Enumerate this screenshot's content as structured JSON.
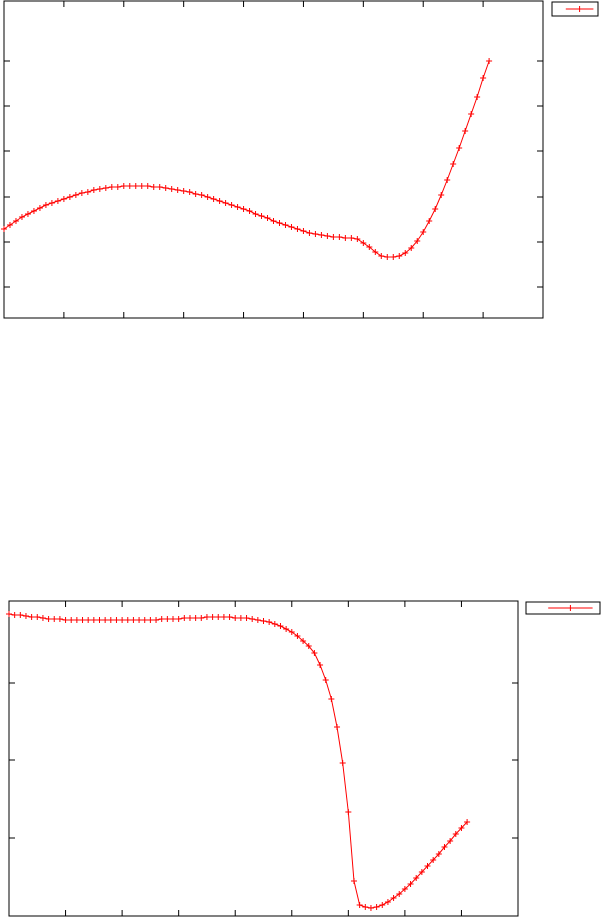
{
  "chart_data": [
    {
      "type": "line",
      "x": [
        0,
        0.1,
        0.2,
        0.3,
        0.4,
        0.5,
        0.6,
        0.7,
        0.8,
        0.9,
        1,
        1.1,
        1.2,
        1.3,
        1.4,
        1.5,
        1.6,
        1.7,
        1.8,
        1.9,
        2,
        2.1,
        2.2,
        2.3,
        2.4,
        2.5,
        2.6,
        2.7,
        2.8,
        2.9,
        3,
        3.1,
        3.2,
        3.3,
        3.4,
        3.5,
        3.6,
        3.7,
        3.8,
        3.9,
        4,
        4.1,
        4.2,
        4.3,
        4.4,
        4.5,
        4.6,
        4.7,
        4.8,
        4.9,
        5,
        5.1,
        5.2,
        5.3,
        5.4,
        5.5,
        5.6,
        5.7,
        5.8,
        5.9,
        6,
        6.1,
        6.2,
        6.3,
        6.4,
        6.5,
        6.6,
        6.7,
        6.8,
        6.9,
        7,
        7.1,
        7.2,
        7.3,
        7.4,
        7.5,
        7.6,
        7.7,
        7.8,
        7.9,
        8,
        8.1
      ],
      "series": [
        {
          "color": "#ff0000",
          "values": [
            89,
            93,
            97,
            101,
            104,
            107,
            110,
            113,
            115,
            117,
            119,
            121,
            123,
            125,
            126,
            128,
            129,
            130,
            131,
            131,
            132,
            132,
            132,
            132,
            132,
            131,
            131,
            130,
            129,
            128,
            127,
            126,
            124,
            123,
            121,
            119,
            117,
            115,
            113,
            111,
            109,
            107,
            104,
            102,
            100,
            97,
            95,
            93,
            91,
            89,
            87,
            85,
            84,
            83,
            82,
            81,
            81,
            80,
            80,
            79,
            75,
            71,
            66,
            62,
            61,
            61,
            62,
            65,
            70,
            77,
            86,
            97,
            109,
            123,
            138,
            154,
            170,
            187,
            204,
            221,
            240,
            257
          ]
        }
      ],
      "xlim": [
        0,
        9
      ],
      "xticks": [
        1,
        2,
        3,
        4,
        5,
        6,
        7,
        8
      ],
      "ylim": [
        0,
        317
      ],
      "yticks": [
        31,
        76,
        121,
        167,
        212,
        257
      ],
      "marker": "+",
      "legend": "right"
    },
    {
      "type": "line",
      "x": [
        0,
        0.1,
        0.2,
        0.3,
        0.4,
        0.5,
        0.6,
        0.7,
        0.8,
        0.9,
        1,
        1.1,
        1.2,
        1.3,
        1.4,
        1.5,
        1.6,
        1.7,
        1.8,
        1.9,
        2,
        2.1,
        2.2,
        2.3,
        2.4,
        2.5,
        2.6,
        2.7,
        2.8,
        2.9,
        3,
        3.1,
        3.2,
        3.3,
        3.4,
        3.5,
        3.6,
        3.7,
        3.8,
        3.9,
        4,
        4.1,
        4.2,
        4.3,
        4.4,
        4.5,
        4.6,
        4.7,
        4.8,
        4.9,
        5,
        5.1,
        5.2,
        5.3,
        5.4,
        5.5,
        5.6,
        5.7,
        5.8,
        5.9,
        6,
        6.1,
        6.2,
        6.3,
        6.4,
        6.5,
        6.6,
        6.7,
        6.8,
        6.9,
        7,
        7.1,
        7.2,
        7.3,
        7.4,
        7.5,
        7.6,
        7.7,
        7.8,
        7.9,
        8,
        8.1
      ],
      "series": [
        {
          "color": "#ff0000",
          "values": [
            302,
            301,
            301,
            300,
            299,
            299,
            298,
            297,
            297,
            297,
            296,
            296,
            296,
            296,
            296,
            296,
            296,
            296,
            296,
            296,
            296,
            296,
            296,
            296,
            296,
            296,
            296,
            297,
            297,
            297,
            297,
            298,
            298,
            298,
            298,
            299,
            299,
            299,
            299,
            299,
            298,
            298,
            298,
            297,
            296,
            295,
            294,
            292,
            290,
            287,
            284,
            280,
            275,
            270,
            263,
            251,
            236,
            217,
            189,
            153,
            104,
            35,
            11,
            9,
            8,
            9,
            11,
            14,
            18,
            22,
            27,
            32,
            38,
            44,
            50,
            56,
            62,
            69,
            75,
            82,
            88,
            94
          ]
        }
      ],
      "xlim": [
        0,
        9
      ],
      "xticks": [
        1,
        2,
        3,
        4,
        5,
        6,
        7,
        8
      ],
      "ylim": [
        0,
        315
      ],
      "yticks": [
        78,
        156,
        233
      ],
      "marker": "+",
      "legend": "right"
    }
  ]
}
